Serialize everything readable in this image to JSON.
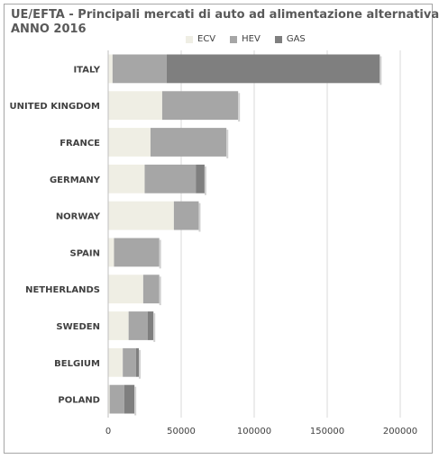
{
  "title_line1": "UE/EFTA - Principali mercati di auto ad alimentazione alternativa",
  "title_line2": "ANNO 2016",
  "chart_data": {
    "type": "bar",
    "orientation": "horizontal",
    "stacked": true,
    "title": "UE/EFTA - Principali mercati di auto ad alimentazione alternativa ANNO 2016",
    "categories": [
      "ITALY",
      "UNITED KINGDOM",
      "FRANCE",
      "GERMANY",
      "NORWAY",
      "SPAIN",
      "NETHERLANDS",
      "SWEDEN",
      "BELGIUM",
      "POLAND"
    ],
    "series": [
      {
        "name": "ECV",
        "color": "#efeee4",
        "values": [
          3000,
          37000,
          29000,
          25000,
          45000,
          4000,
          24000,
          14000,
          10000,
          1000
        ]
      },
      {
        "name": "HEV",
        "color": "#a6a6a6",
        "values": [
          37000,
          52000,
          52000,
          35000,
          17000,
          31000,
          11000,
          13000,
          9000,
          10000
        ]
      },
      {
        "name": "GAS",
        "color": "#7f7f7f",
        "values": [
          146000,
          0,
          0,
          6000,
          0,
          0,
          0,
          4000,
          2000,
          7000
        ]
      }
    ],
    "xticks": [
      "0",
      "50000",
      "100000",
      "150000",
      "200000"
    ],
    "xlim": [
      0,
      200000
    ],
    "legend_position": "top",
    "grid": "vertical"
  }
}
